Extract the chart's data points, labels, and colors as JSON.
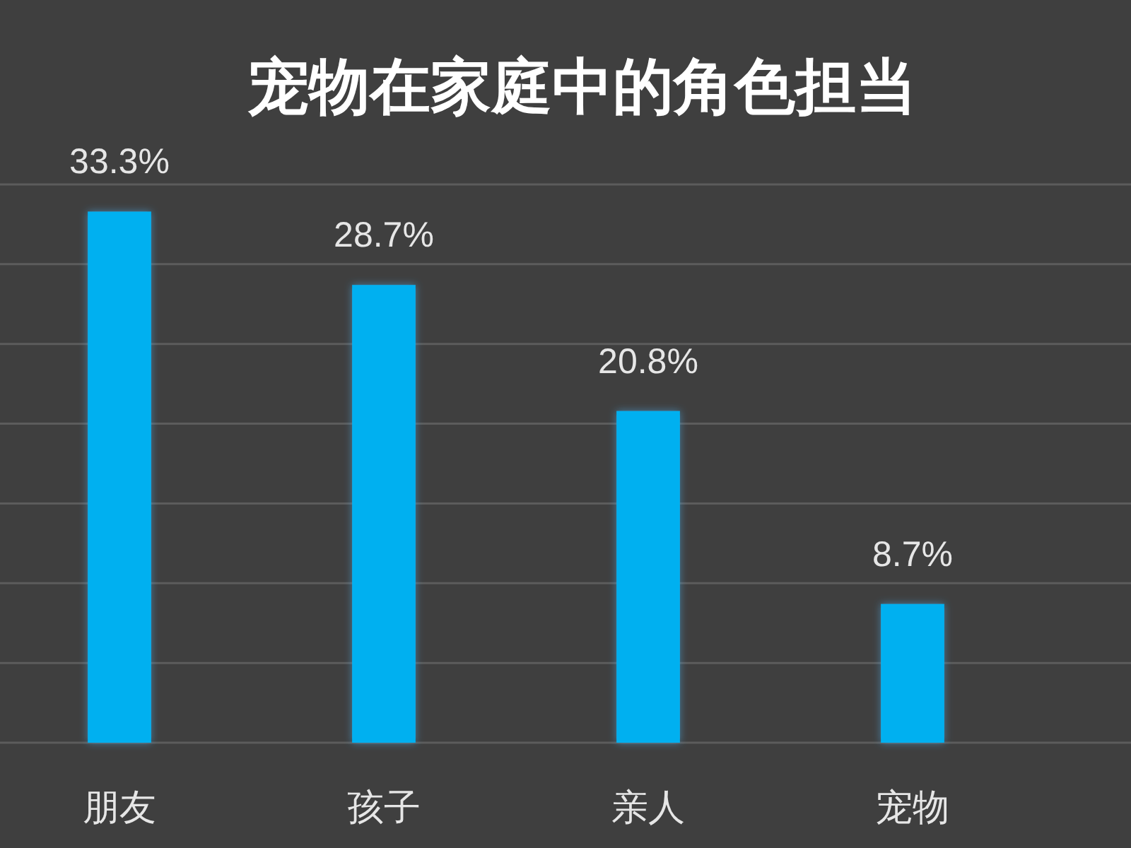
{
  "chart_data": {
    "type": "bar",
    "title": "宠物在家庭中的角色担当",
    "categories": [
      "朋友",
      "孩子",
      "亲人",
      "宠物"
    ],
    "values": [
      33.3,
      28.7,
      20.8,
      8.7
    ],
    "value_labels": [
      "33.3%",
      "28.7%",
      "20.8%",
      "8.7%"
    ],
    "color": "#00b0f0",
    "ylim": [
      0,
      35
    ],
    "yticks": [
      {
        "value": 0,
        "label": null
      },
      {
        "value": 5,
        "label": null
      },
      {
        "value": 10,
        "label": null
      },
      {
        "value": 15,
        "label": null
      },
      {
        "value": 20,
        "label": null
      },
      {
        "value": 25,
        "label": null
      },
      {
        "value": 30,
        "label": null
      },
      {
        "value": 35,
        "label": null
      }
    ],
    "grid": "y",
    "tick_labels": "x"
  }
}
